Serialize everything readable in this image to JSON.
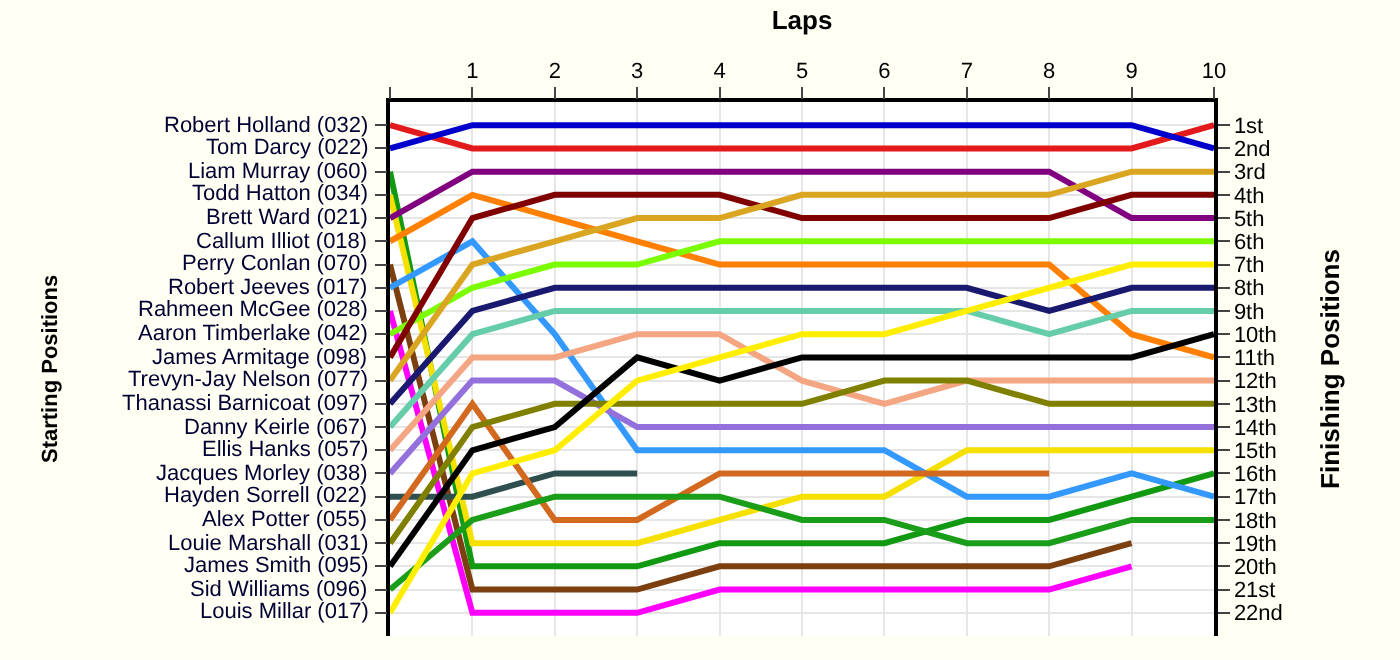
{
  "chart_data": {
    "type": "line",
    "xlabel": "Laps",
    "annotations": [
      "Starting Positions"
    ],
    "y2label": "Finishing Positions",
    "x": [
      0,
      1,
      2,
      3,
      4,
      5,
      6,
      7,
      8,
      9,
      10
    ],
    "xlim": [
      0,
      10
    ],
    "xticks": [
      {
        "value": 0,
        "label": null
      },
      1,
      2,
      3,
      4,
      5,
      6,
      7,
      8,
      9,
      10
    ],
    "y2lim": [
      23,
      0
    ],
    "y2ticks": [
      {
        "value": 1,
        "label": "1st"
      },
      {
        "value": 2,
        "label": "2nd"
      },
      {
        "value": 3,
        "label": "3rd"
      },
      {
        "value": 4,
        "label": "4th"
      },
      {
        "value": 5,
        "label": "5th"
      },
      {
        "value": 6,
        "label": "6th"
      },
      {
        "value": 7,
        "label": "7th"
      },
      {
        "value": 8,
        "label": "8th"
      },
      {
        "value": 9,
        "label": "9th"
      },
      {
        "value": 10,
        "label": "10th"
      },
      {
        "value": 11,
        "label": "11th"
      },
      {
        "value": 12,
        "label": "12th"
      },
      {
        "value": 13,
        "label": "13th"
      },
      {
        "value": 14,
        "label": "14th"
      },
      {
        "value": 15,
        "label": "15th"
      },
      {
        "value": 16,
        "label": "16th"
      },
      {
        "value": 17,
        "label": "17th"
      },
      {
        "value": 18,
        "label": "18th"
      },
      {
        "value": 19,
        "label": "19th"
      },
      {
        "value": 20,
        "label": "20th"
      },
      {
        "value": 21,
        "label": "21st"
      },
      {
        "value": 22,
        "label": "22nd"
      }
    ],
    "grid": true,
    "legend": false,
    "marker": "none",
    "line_style": "solid",
    "series": [
      {
        "name": "Robert Holland (032)",
        "axis": "y2",
        "color": "#e31a1c",
        "values": [
          1,
          2,
          2,
          2,
          2,
          2,
          2,
          2,
          2,
          2,
          1
        ]
      },
      {
        "name": "Tom Darcy (022)",
        "axis": "y2",
        "color": "#0000cc",
        "values": [
          2,
          1,
          1,
          1,
          1,
          1,
          1,
          1,
          1,
          1,
          2
        ]
      },
      {
        "name": "Liam Murray (060)",
        "axis": "y2",
        "color": "#119911",
        "values": [
          3,
          20,
          20,
          20,
          19,
          19,
          19,
          18,
          18,
          17,
          16
        ]
      },
      {
        "name": "Todd Hatton (034)",
        "axis": "y2",
        "color": "#f5e000",
        "values": [
          4,
          19,
          19,
          19,
          18,
          17,
          17,
          15,
          15,
          15,
          15
        ]
      },
      {
        "name": "Brett Ward (021)",
        "axis": "y2",
        "color": "#800080",
        "values": [
          5,
          3,
          3,
          3,
          3,
          3,
          3,
          3,
          3,
          5,
          5
        ]
      },
      {
        "name": "Callum Illiot (018)",
        "axis": "y2",
        "color": "#ff7f00",
        "values": [
          6,
          4,
          5,
          6,
          7,
          7,
          7,
          7,
          7,
          10,
          11
        ]
      },
      {
        "name": "Perry Conlan (070)",
        "axis": "y2",
        "color": "#7b3f10",
        "values": [
          7,
          21,
          21,
          21,
          20,
          20,
          20,
          20,
          20,
          19,
          null
        ]
      },
      {
        "name": "Robert Jeeves (017)",
        "axis": "y2",
        "color": "#3399ff",
        "values": [
          8,
          6,
          10,
          15,
          15,
          15,
          15,
          17,
          17,
          16,
          17
        ]
      },
      {
        "name": "Rahmeen McGee (028)",
        "axis": "y2",
        "color": "#ff00ff",
        "values": [
          9,
          22,
          22,
          22,
          21,
          21,
          21,
          21,
          21,
          20,
          null
        ]
      },
      {
        "name": "Aaron Timberlake (042)",
        "axis": "y2",
        "color": "#7cfc00",
        "values": [
          10,
          8,
          7,
          7,
          6,
          6,
          6,
          6,
          6,
          6,
          6
        ]
      },
      {
        "name": "James Armitage (098)",
        "axis": "y2",
        "color": "#800000",
        "values": [
          11,
          5,
          4,
          4,
          4,
          5,
          5,
          5,
          5,
          4,
          4
        ]
      },
      {
        "name": "Trevyn-Jay Nelson (077)",
        "axis": "y2",
        "color": "#daa520",
        "values": [
          12,
          7,
          6,
          5,
          5,
          4,
          4,
          4,
          4,
          3,
          3
        ]
      },
      {
        "name": "Thanassi Barnicoat (097)",
        "axis": "y2",
        "color": "#191970",
        "values": [
          13,
          9,
          8,
          8,
          8,
          8,
          8,
          8,
          9,
          8,
          8
        ]
      },
      {
        "name": "Danny Keirle (067)",
        "axis": "y2",
        "color": "#66cdaa",
        "values": [
          14,
          10,
          9,
          9,
          9,
          9,
          9,
          9,
          10,
          9,
          9
        ]
      },
      {
        "name": "Ellis Hanks (057)",
        "axis": "y2",
        "color": "#f4a582",
        "values": [
          15,
          11,
          11,
          10,
          10,
          12,
          13,
          12,
          12,
          12,
          12
        ]
      },
      {
        "name": "Jacques Morley (038)",
        "axis": "y2",
        "color": "#9370db",
        "values": [
          16,
          12,
          12,
          14,
          14,
          14,
          14,
          14,
          14,
          14,
          14
        ]
      },
      {
        "name": "Hayden Sorrell (022)",
        "axis": "y2",
        "color": "#2f4f4f",
        "values": [
          17,
          17,
          16,
          16,
          null,
          null,
          null,
          null,
          null,
          null,
          null
        ]
      },
      {
        "name": "Alex Potter (055)",
        "axis": "y2",
        "color": "#d2691e",
        "values": [
          18,
          13,
          18,
          18,
          16,
          16,
          16,
          16,
          16,
          null,
          null
        ]
      },
      {
        "name": "Louie Marshall (031)",
        "axis": "y2",
        "color": "#808000",
        "values": [
          19,
          14,
          13,
          13,
          13,
          13,
          12,
          12,
          13,
          13,
          13
        ]
      },
      {
        "name": "James Smith (095)",
        "axis": "y2",
        "color": "#000000",
        "values": [
          20,
          15,
          14,
          11,
          12,
          11,
          11,
          11,
          11,
          11,
          10
        ]
      },
      {
        "name": "Sid Williams (096)",
        "axis": "y2",
        "color": "#1a9e1a",
        "values": [
          21,
          18,
          17,
          17,
          17,
          18,
          18,
          19,
          19,
          18,
          18
        ]
      },
      {
        "name": "Louis Millar (017)",
        "axis": "y2",
        "color": "#ffee00",
        "values": [
          22,
          16,
          15,
          12,
          11,
          10,
          10,
          9,
          8,
          7,
          7
        ]
      }
    ]
  }
}
